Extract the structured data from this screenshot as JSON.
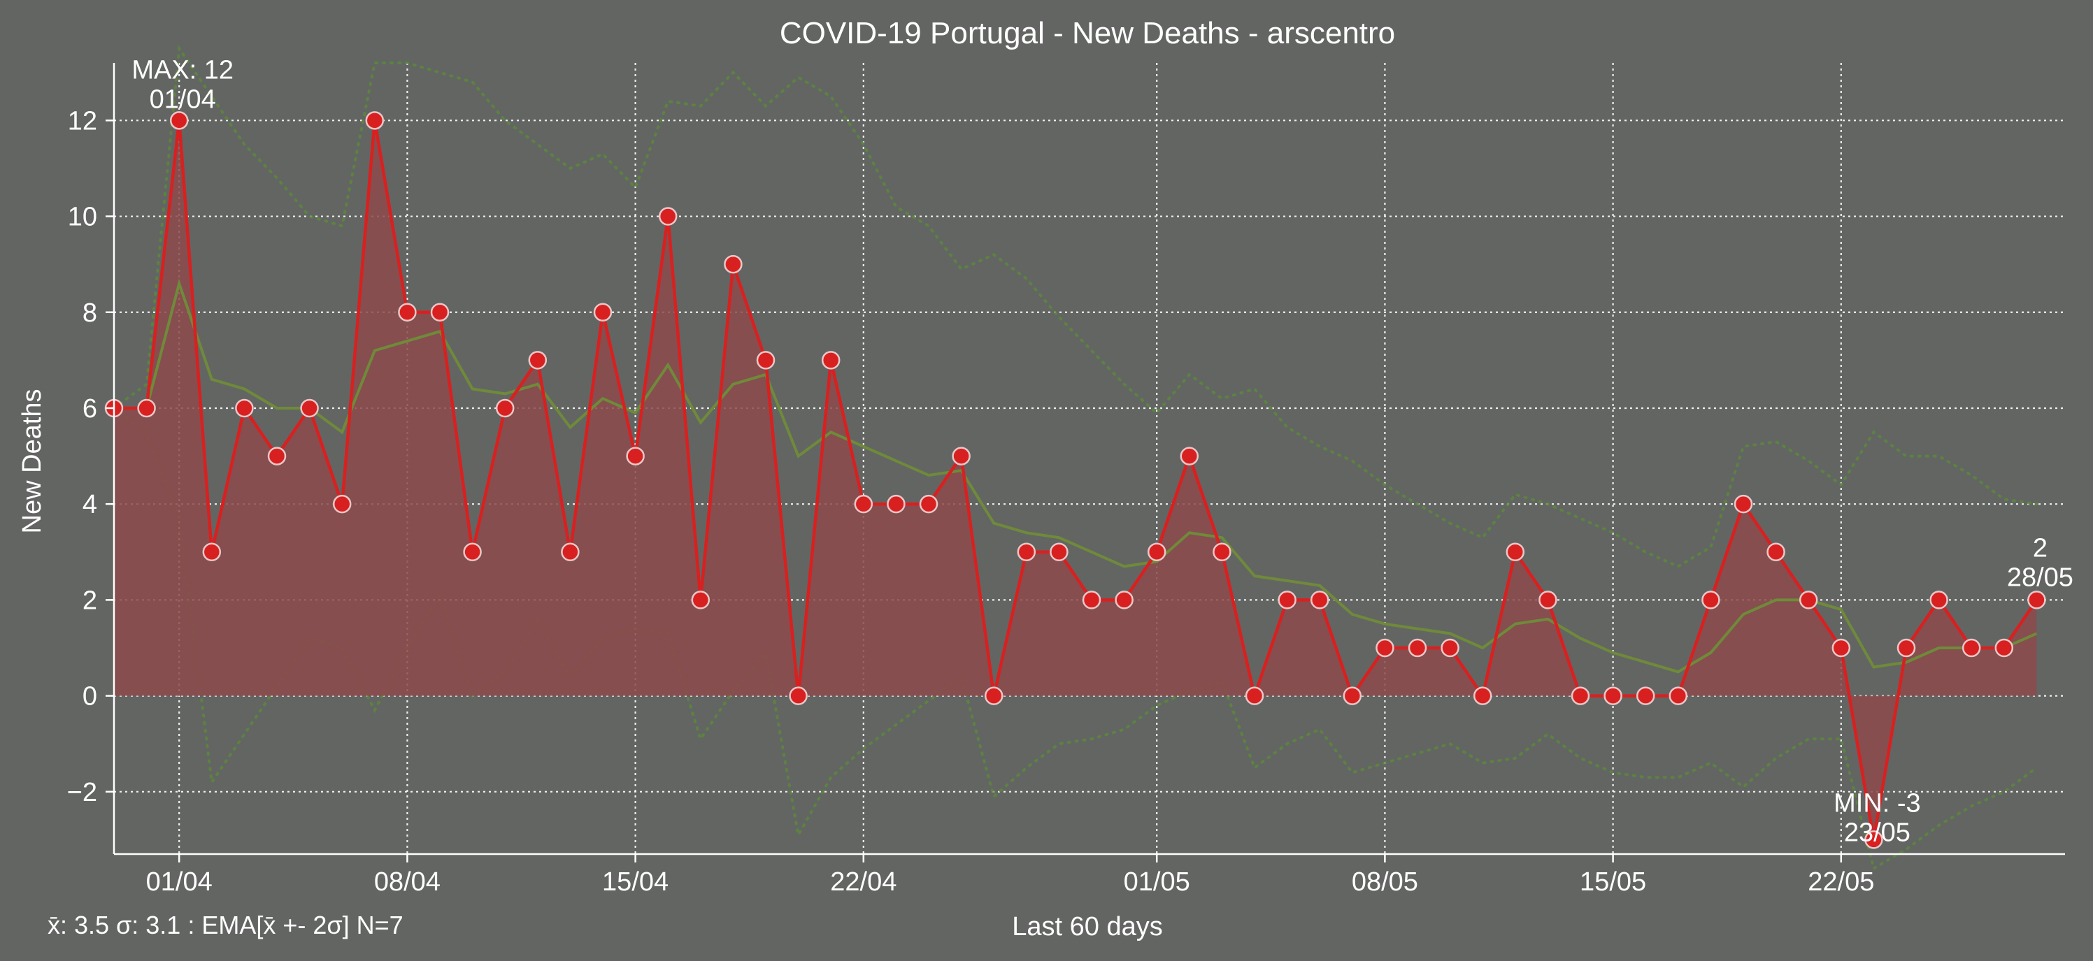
{
  "colors": {
    "background": "#636563",
    "deaths_line": "#d92020",
    "deaths_fill": "#8c4a4a",
    "ema_line": "#6f8a3a",
    "band_line": "#5a8a3a",
    "stats_text": "#66ff33",
    "grid": "#ffffff"
  },
  "chart_data": {
    "type": "line",
    "title": "COVID-19 Portugal - New Deaths - arscentro",
    "xlabel": "Last 60 days",
    "ylabel": "New Deaths",
    "footer": "x̄: 3.5 σ: 3.1 : EMA[x̄ +- 2σ] N=7",
    "ylim": [
      -3.3,
      13.2
    ],
    "yticks": [
      -2,
      0,
      2,
      4,
      6,
      8,
      10,
      12
    ],
    "ytick_labels": [
      "−2",
      "0",
      "2",
      "4",
      "6",
      "8",
      "10",
      "12"
    ],
    "xticks": [
      {
        "date": "2020-04-01",
        "label": "01/04"
      },
      {
        "date": "2020-04-08",
        "label": "08/04"
      },
      {
        "date": "2020-04-15",
        "label": "15/04"
      },
      {
        "date": "2020-04-22",
        "label": "22/04"
      },
      {
        "date": "2020-05-01",
        "label": "01/05"
      },
      {
        "date": "2020-05-08",
        "label": "08/05"
      },
      {
        "date": "2020-05-15",
        "label": "15/05"
      },
      {
        "date": "2020-05-22",
        "label": "22/05"
      }
    ],
    "grid": true,
    "x": [
      "2020-03-30",
      "2020-03-31",
      "2020-04-01",
      "2020-04-02",
      "2020-04-03",
      "2020-04-04",
      "2020-04-05",
      "2020-04-06",
      "2020-04-07",
      "2020-04-08",
      "2020-04-09",
      "2020-04-10",
      "2020-04-11",
      "2020-04-12",
      "2020-04-13",
      "2020-04-14",
      "2020-04-15",
      "2020-04-16",
      "2020-04-17",
      "2020-04-18",
      "2020-04-19",
      "2020-04-20",
      "2020-04-21",
      "2020-04-22",
      "2020-04-23",
      "2020-04-24",
      "2020-04-25",
      "2020-04-26",
      "2020-04-27",
      "2020-04-28",
      "2020-04-29",
      "2020-04-30",
      "2020-05-01",
      "2020-05-02",
      "2020-05-03",
      "2020-05-04",
      "2020-05-05",
      "2020-05-06",
      "2020-05-07",
      "2020-05-08",
      "2020-05-09",
      "2020-05-10",
      "2020-05-11",
      "2020-05-12",
      "2020-05-13",
      "2020-05-14",
      "2020-05-15",
      "2020-05-16",
      "2020-05-17",
      "2020-05-18",
      "2020-05-19",
      "2020-05-20",
      "2020-05-21",
      "2020-05-22",
      "2020-05-23",
      "2020-05-24",
      "2020-05-25",
      "2020-05-26",
      "2020-05-27",
      "2020-05-28"
    ],
    "series": [
      {
        "name": "",
        "values": [
          6,
          6,
          12,
          3,
          6,
          5,
          6,
          4,
          12,
          8,
          8,
          3,
          6,
          7,
          3,
          8,
          5,
          10,
          2,
          9,
          7,
          0,
          7,
          4,
          4,
          4,
          5,
          0,
          3,
          3,
          2,
          2,
          3,
          5,
          3,
          0,
          2,
          2,
          0,
          1,
          1,
          1,
          0,
          3,
          2,
          0,
          0,
          0,
          0,
          2,
          4,
          3,
          2,
          1,
          -3,
          1,
          2,
          1,
          1,
          2
        ]
      },
      {
        "name": "",
        "values": [
          6.0,
          6.0,
          8.6,
          6.6,
          6.4,
          6.0,
          6.0,
          5.5,
          7.2,
          7.4,
          7.6,
          6.4,
          6.3,
          6.5,
          5.6,
          6.2,
          5.9,
          6.9,
          5.7,
          6.5,
          6.7,
          5.0,
          5.5,
          5.2,
          4.9,
          4.6,
          4.7,
          3.6,
          3.4,
          3.3,
          3.0,
          2.7,
          2.8,
          3.4,
          3.3,
          2.5,
          2.4,
          2.3,
          1.7,
          1.5,
          1.4,
          1.3,
          1.0,
          1.5,
          1.6,
          1.2,
          0.9,
          0.7,
          0.5,
          0.9,
          1.7,
          2.0,
          2.0,
          1.8,
          0.6,
          0.7,
          1.0,
          1.0,
          1.0,
          1.3
        ]
      },
      {
        "name": "",
        "values": [
          6.0,
          6.5,
          13.5,
          12.5,
          11.5,
          10.8,
          10.0,
          9.8,
          13.2,
          13.2,
          13.0,
          12.8,
          12.0,
          11.5,
          11.0,
          11.3,
          10.6,
          12.4,
          12.3,
          13.0,
          12.3,
          12.9,
          12.5,
          11.5,
          10.2,
          9.8,
          8.9,
          9.2,
          8.7,
          7.9,
          7.2,
          6.5,
          5.9,
          6.7,
          6.2,
          6.4,
          5.6,
          5.2,
          4.9,
          4.4,
          4.0,
          3.6,
          3.3,
          4.2,
          4.0,
          3.7,
          3.4,
          3.0,
          2.7,
          3.1,
          5.2,
          5.3,
          4.9,
          4.4,
          5.5,
          5.0,
          5.0,
          4.6,
          4.1,
          4.0
        ]
      },
      {
        "name": "",
        "values": [
          6.0,
          5.5,
          3.7,
          -1.8,
          -0.8,
          0.2,
          1.2,
          1.0,
          -0.3,
          1.0,
          2.1,
          0.0,
          0.5,
          1.6,
          0.4,
          1.2,
          1.4,
          1.3,
          -0.9,
          0.1,
          0.9,
          -2.9,
          -1.7,
          -1.1,
          -0.6,
          -0.1,
          0.4,
          -2.1,
          -1.5,
          -1.0,
          -0.9,
          -0.7,
          -0.2,
          0.1,
          0.3,
          -1.5,
          -1.0,
          -0.7,
          -1.6,
          -1.4,
          -1.2,
          -1.0,
          -1.4,
          -1.3,
          -0.8,
          -1.3,
          -1.6,
          -1.7,
          -1.7,
          -1.4,
          -1.9,
          -1.3,
          -0.9,
          -0.9,
          -3.6,
          -3.2,
          -2.7,
          -2.3,
          -2.0,
          -1.5
        ]
      }
    ],
    "annotations": {
      "max": {
        "label": "MAX: 12",
        "date_label": "01/04",
        "x": "2020-04-01",
        "y": 12
      },
      "min": {
        "label": "MIN: -3",
        "date_label": "23/05",
        "x": "2020-05-23",
        "y": -3
      },
      "last": {
        "label": "2",
        "date_label": "28/05",
        "x": "2020-05-28",
        "y": 2
      }
    }
  }
}
